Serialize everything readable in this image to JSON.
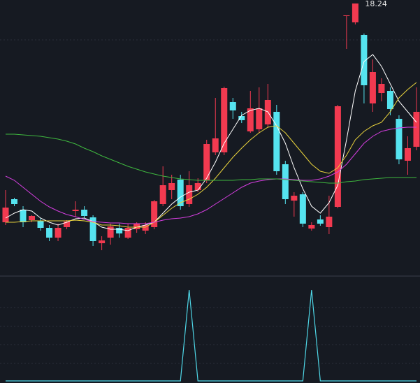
{
  "chart_data": [
    {
      "type": "candlestick",
      "ylim": [
        10.44,
        18.34
      ],
      "up_color": "#f23a50",
      "down_color": "#55e3ef",
      "open": [
        11.98,
        12.64,
        12.34,
        12.04,
        12.02,
        11.82,
        11.54,
        11.84,
        12.3,
        12.34,
        12.12,
        11.38,
        11.54,
        11.82,
        11.54,
        11.78,
        11.74,
        11.84,
        12.5,
        12.9,
        13.2,
        12.5,
        12.9,
        13.18,
        13.98,
        13.98,
        15.42,
        15.02,
        14.58,
        14.64,
        14.78,
        15.14,
        13.64,
        12.6,
        12.78,
        11.8,
        12.06,
        11.84,
        12.42,
        17.88,
        17.7,
        17.34,
        15.38,
        15.68,
        15.74,
        14.94,
        13.74,
        14.14
      ],
      "high": [
        12.9,
        12.68,
        12.44,
        12.18,
        12.1,
        11.9,
        11.94,
        12.04,
        12.58,
        12.44,
        12.18,
        11.58,
        11.94,
        11.94,
        11.94,
        11.98,
        11.98,
        12.62,
        13.58,
        13.34,
        13.34,
        13.44,
        13.24,
        14.34,
        15.54,
        15.86,
        15.54,
        15.14,
        15.74,
        15.84,
        15.94,
        15.34,
        13.74,
        12.84,
        12.84,
        11.98,
        12.18,
        12.74,
        15.34,
        17.9,
        18.24,
        17.38,
        16.64,
        16.1,
        15.84,
        15.04,
        14.44,
        15.84
      ],
      "low": [
        11.9,
        12.44,
        11.84,
        11.98,
        11.74,
        11.44,
        11.44,
        11.78,
        12.14,
        12.1,
        11.3,
        11.18,
        11.34,
        11.54,
        11.5,
        11.68,
        11.64,
        11.78,
        12.44,
        12.64,
        12.34,
        12.42,
        12.84,
        13.1,
        13.9,
        13.9,
        14.94,
        14.82,
        14.54,
        14.54,
        14.7,
        13.34,
        12.5,
        12.14,
        11.84,
        11.74,
        11.88,
        11.64,
        12.38,
        16.94,
        17.64,
        15.38,
        15.14,
        15.44,
        15.04,
        13.64,
        13.34,
        14.04
      ],
      "close": [
        12.4,
        12.5,
        11.98,
        12.16,
        11.82,
        11.54,
        11.82,
        12.0,
        12.34,
        12.16,
        11.44,
        11.46,
        11.86,
        11.66,
        11.82,
        11.94,
        11.9,
        12.58,
        13.04,
        13.1,
        12.44,
        13.04,
        13.1,
        14.22,
        14.38,
        15.82,
        15.18,
        14.9,
        15.24,
        15.24,
        15.48,
        13.44,
        12.64,
        12.74,
        11.94,
        11.9,
        11.94,
        12.14,
        15.3,
        17.9,
        18.24,
        15.9,
        16.28,
        15.94,
        15.22,
        13.78,
        14.1,
        15.14
      ],
      "max_label": 18.24,
      "lines": [
        {
          "color": "#ffffff",
          "values": [
            12.1,
            12.24,
            12.34,
            12.3,
            12.1,
            11.98,
            11.9,
            11.98,
            12.08,
            12.1,
            12.0,
            11.84,
            11.78,
            11.78,
            11.74,
            11.84,
            11.9,
            11.98,
            12.24,
            12.5,
            12.7,
            12.84,
            12.9,
            13.24,
            13.7,
            14.24,
            14.64,
            15.04,
            15.18,
            15.24,
            15.14,
            14.74,
            14.24,
            13.54,
            12.94,
            12.44,
            12.24,
            12.54,
            13.04,
            14.34,
            15.74,
            16.58,
            16.78,
            16.44,
            15.94,
            15.44,
            15.14,
            14.84
          ]
        },
        {
          "color": "#e8d23c",
          "values": [
            11.98,
            11.98,
            12.0,
            12.02,
            12.02,
            12.02,
            12.02,
            12.02,
            12.04,
            12.02,
            11.98,
            11.9,
            11.9,
            11.88,
            11.84,
            11.84,
            11.84,
            11.98,
            12.18,
            12.38,
            12.54,
            12.64,
            12.78,
            12.98,
            13.24,
            13.54,
            13.84,
            14.1,
            14.34,
            14.54,
            14.7,
            14.74,
            14.54,
            14.24,
            13.94,
            13.64,
            13.44,
            13.38,
            13.54,
            13.9,
            14.34,
            14.58,
            14.74,
            14.84,
            15.14,
            15.54,
            15.78,
            15.98
          ]
        },
        {
          "color": "#d53ee0",
          "values": [
            13.3,
            13.18,
            12.98,
            12.78,
            12.58,
            12.42,
            12.3,
            12.2,
            12.14,
            12.06,
            12.0,
            11.98,
            11.96,
            11.96,
            11.94,
            11.94,
            11.94,
            11.98,
            12.04,
            12.08,
            12.1,
            12.14,
            12.22,
            12.34,
            12.5,
            12.66,
            12.82,
            12.98,
            13.1,
            13.16,
            13.2,
            13.22,
            13.22,
            13.2,
            13.18,
            13.18,
            13.22,
            13.3,
            13.42,
            13.64,
            13.94,
            14.24,
            14.44,
            14.58,
            14.64,
            14.68,
            14.7,
            14.7
          ]
        },
        {
          "color": "#3fb83f",
          "values": [
            14.5,
            14.5,
            14.48,
            14.46,
            14.44,
            14.4,
            14.36,
            14.3,
            14.22,
            14.1,
            14.0,
            13.88,
            13.78,
            13.68,
            13.58,
            13.5,
            13.42,
            13.36,
            13.3,
            13.26,
            13.22,
            13.2,
            13.18,
            13.18,
            13.18,
            13.18,
            13.18,
            13.2,
            13.2,
            13.22,
            13.22,
            13.22,
            13.2,
            13.18,
            13.16,
            13.14,
            13.12,
            13.1,
            13.1,
            13.14,
            13.16,
            13.2,
            13.22,
            13.24,
            13.26,
            13.26,
            13.26,
            13.26
          ]
        }
      ]
    },
    {
      "type": "line",
      "ylim": [
        0,
        1
      ],
      "color": "#4fd8e8",
      "values": [
        0,
        0,
        0,
        0,
        0,
        0,
        0,
        0,
        0,
        0,
        0,
        0,
        0,
        0,
        0,
        0,
        0,
        0,
        0,
        0,
        0,
        1,
        0,
        0,
        0,
        0,
        0,
        0,
        0,
        0,
        0,
        0,
        0,
        0,
        0,
        1,
        0,
        0,
        0,
        0,
        0,
        0,
        0,
        0,
        0,
        0,
        0,
        0
      ]
    }
  ]
}
